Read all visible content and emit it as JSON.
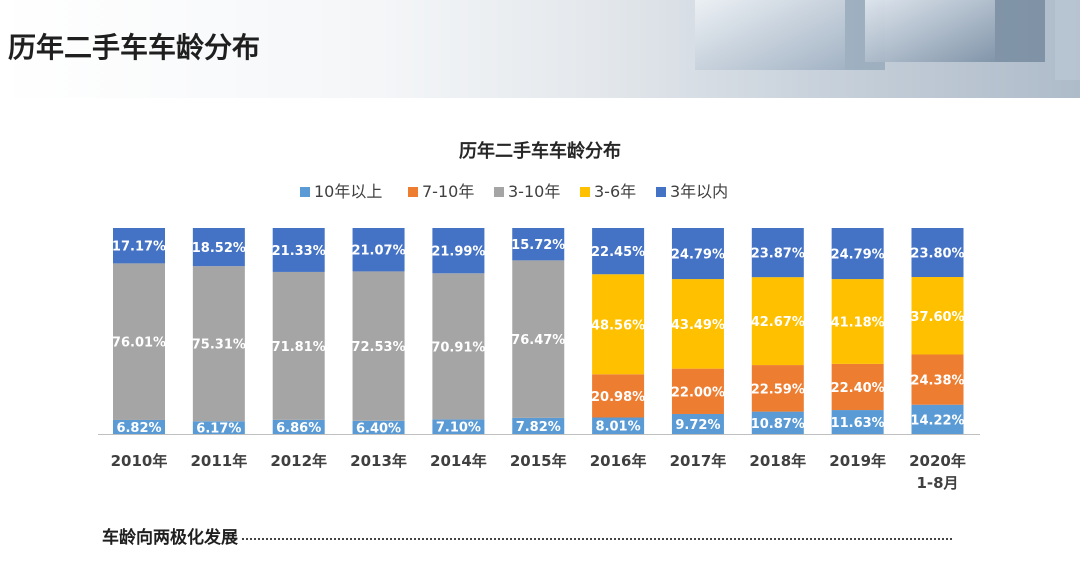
{
  "page": {
    "title": "历年二手车车龄分布",
    "footer_text": "车龄向两极化发展"
  },
  "chart_data": {
    "type": "bar",
    "stacked": true,
    "title": "历年二手车车龄分布",
    "categories": [
      "2010年",
      "2011年",
      "2012年",
      "2013年",
      "2014年",
      "2015年",
      "2016年",
      "2017年",
      "2018年",
      "2019年",
      "2020年\n1-8月"
    ],
    "series": [
      {
        "name": "10年以上",
        "color": "#5b9bd5",
        "values": [
          6.82,
          6.17,
          6.86,
          6.4,
          7.1,
          7.82,
          8.01,
          9.72,
          10.87,
          11.63,
          14.22
        ],
        "labels": [
          "6.82%",
          "6.17%",
          "6.86%",
          "6.40%",
          "7.10%",
          "7.82%",
          "8.01%",
          "9.72%",
          "10.87%",
          "11.63%",
          "14.22%"
        ]
      },
      {
        "name": "7-10年",
        "color": "#ed7d31",
        "values": [
          null,
          null,
          null,
          null,
          null,
          null,
          20.98,
          22.0,
          22.59,
          22.4,
          24.38
        ],
        "labels": [
          null,
          null,
          null,
          null,
          null,
          null,
          "20.98%",
          "22.00%",
          "22.59%",
          "22.40%",
          "24.38%"
        ]
      },
      {
        "name": "3-10年",
        "color": "#a5a5a5",
        "values": [
          76.01,
          75.31,
          71.81,
          72.53,
          70.91,
          76.47,
          null,
          null,
          null,
          null,
          null
        ],
        "labels": [
          "76.01%",
          "75.31%",
          "71.81%",
          "72.53%",
          "70.91%",
          "76.47%",
          null,
          null,
          null,
          null,
          null
        ]
      },
      {
        "name": "3-6年",
        "color": "#ffc000",
        "values": [
          null,
          null,
          null,
          null,
          null,
          null,
          48.56,
          43.49,
          42.67,
          41.18,
          37.6
        ],
        "labels": [
          null,
          null,
          null,
          null,
          null,
          null,
          "48.56%",
          "43.49%",
          "42.67%",
          "41.18%",
          "37.60%"
        ]
      },
      {
        "name": "3年以内",
        "color": "#4472c4",
        "values": [
          17.17,
          18.52,
          21.33,
          21.07,
          21.99,
          15.72,
          22.45,
          24.79,
          23.87,
          24.79,
          23.8
        ],
        "labels": [
          "17.17%",
          "18.52%",
          "21.33%",
          "21.07%",
          "21.99%",
          "15.72%",
          "22.45%",
          "24.79%",
          "23.87%",
          "24.79%",
          "23.80%"
        ]
      }
    ],
    "ylim": [
      0,
      100
    ],
    "legend_position": "top-center"
  }
}
